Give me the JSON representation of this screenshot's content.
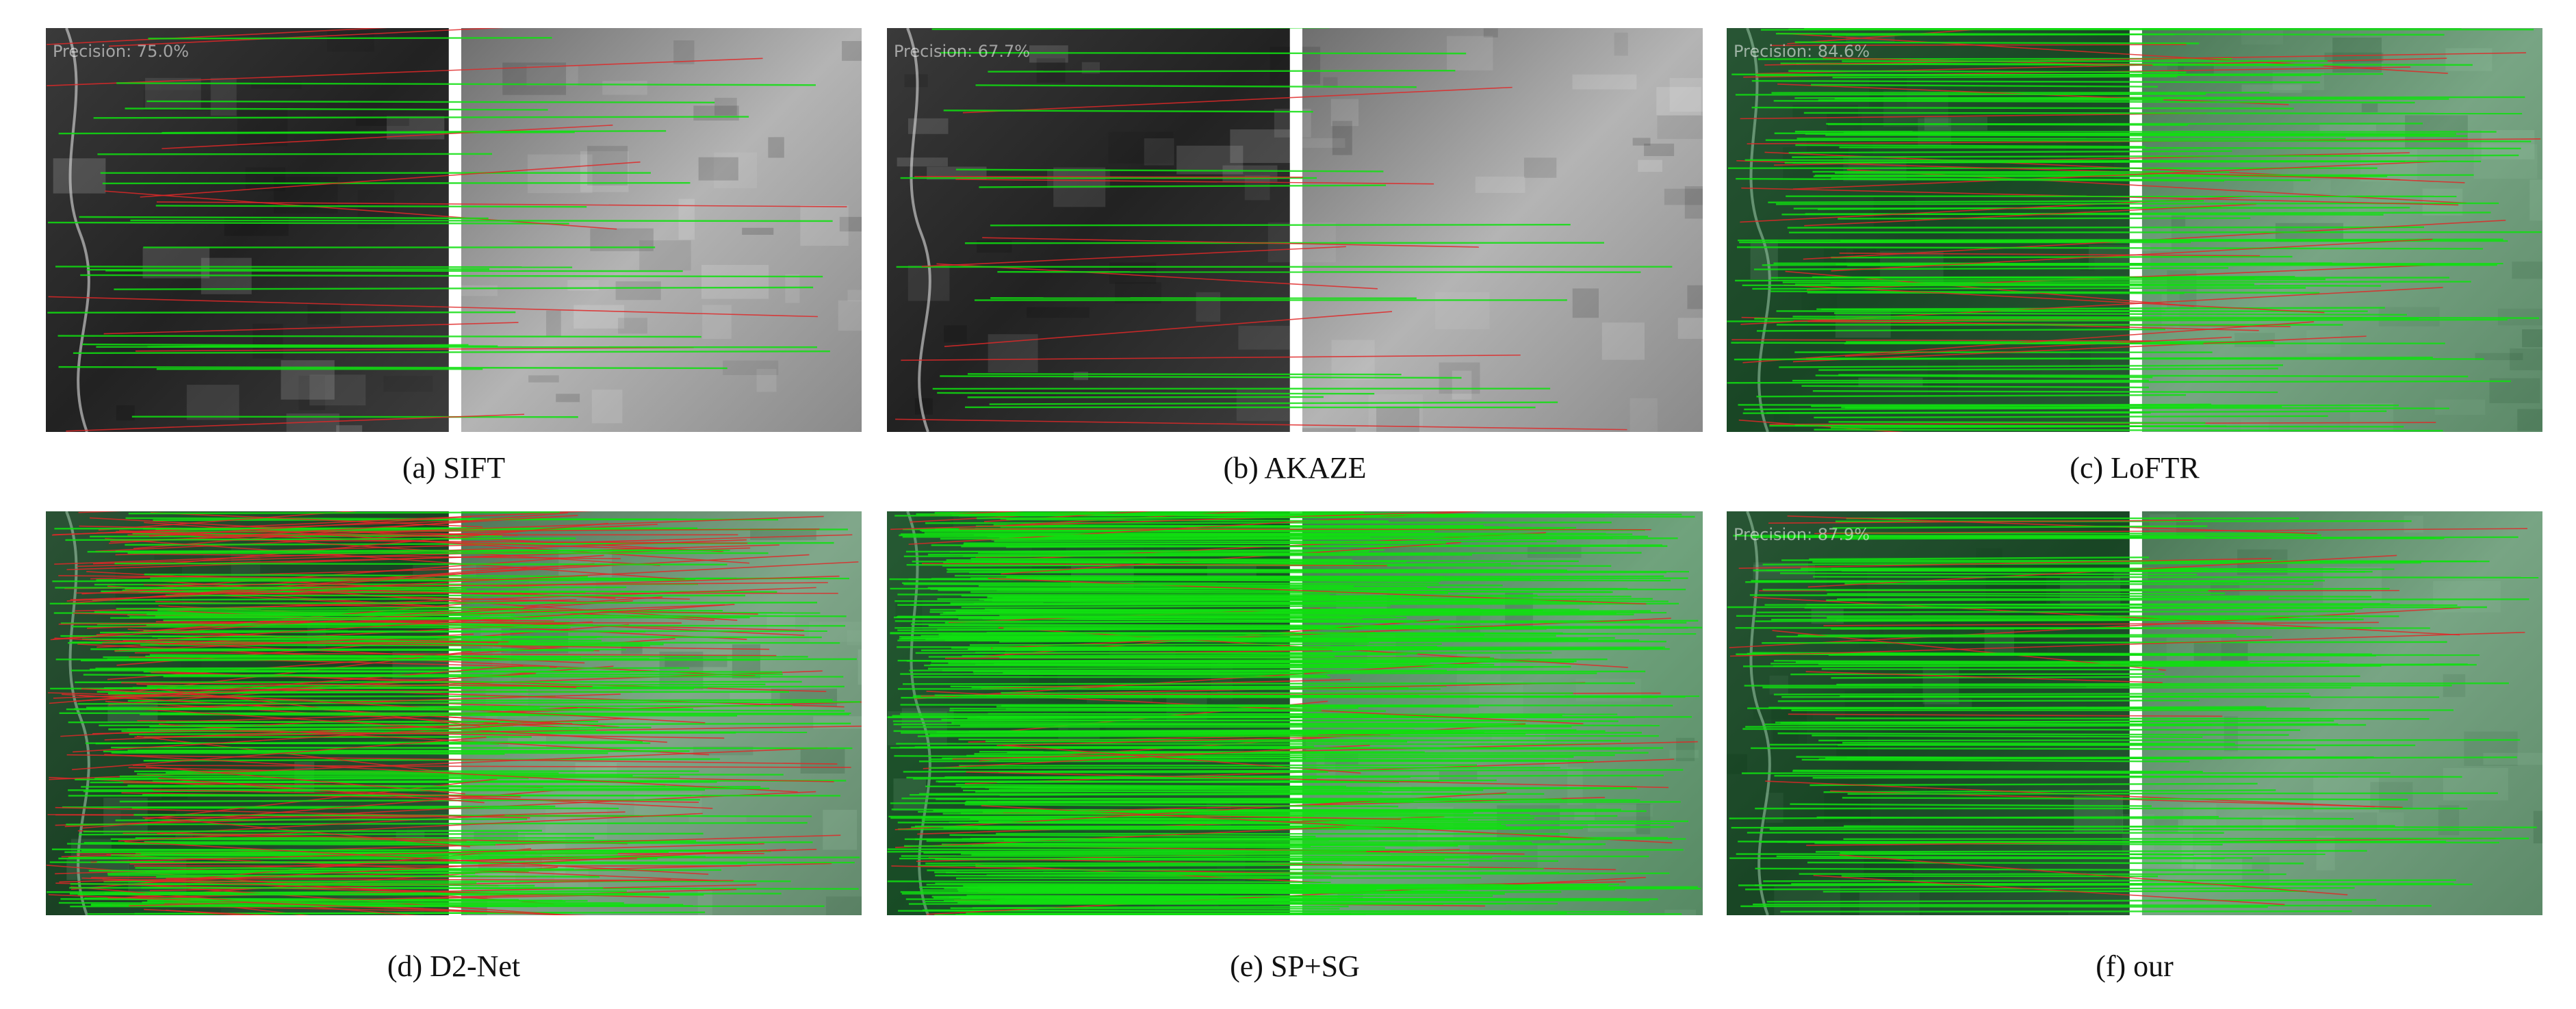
{
  "panels": [
    {
      "caption": "(a) SIFT",
      "overlay": "Precision: 75.0%"
    },
    {
      "caption": "(b) AKAZE",
      "overlay": "Precision: 67.7%"
    },
    {
      "caption": "(c) LoFTR",
      "overlay": "Precision: 84.6%"
    },
    {
      "caption": "(d) D2-Net"
    },
    {
      "caption": "(e) SP+SG"
    },
    {
      "caption": "(f) our",
      "overlay": "Precision: 87.9%"
    }
  ]
}
